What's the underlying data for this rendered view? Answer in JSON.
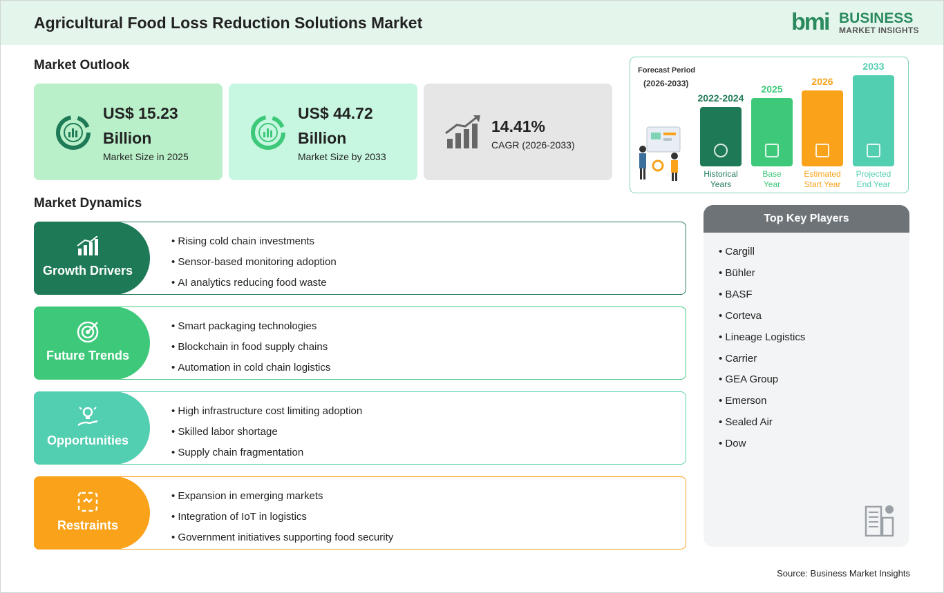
{
  "header": {
    "title": "Agricultural Food Loss Reduction Solutions Market",
    "logo_mark": "bmi",
    "logo_name": "BUSINESS",
    "logo_sub": "MARKET INSIGHTS"
  },
  "outlook": {
    "heading": "Market Outlook",
    "cards": [
      {
        "value": "US$ 15.23",
        "unit": "Billion",
        "label": "Market Size in 2025"
      },
      {
        "value": "US$ 44.72",
        "unit": "Billion",
        "label": "Market Size by 2033"
      },
      {
        "value": "14.41%",
        "label": "CAGR (2026-2033)"
      }
    ]
  },
  "forecast": {
    "title": "Forecast Period",
    "range": "(2026-2033)",
    "bars": [
      {
        "year": "2022-2024",
        "label": [
          "Historical",
          "Years"
        ]
      },
      {
        "year": "2025",
        "label": [
          "Base",
          "Year"
        ]
      },
      {
        "year": "2026",
        "label": [
          "Estimated",
          "Start Year"
        ]
      },
      {
        "year": "2033",
        "label": [
          "Projected",
          "End Year"
        ]
      }
    ]
  },
  "dynamics": {
    "heading": "Market Dynamics",
    "sections": [
      {
        "title": "Growth Drivers",
        "items": [
          "Rising cold chain investments",
          "Sensor-based monitoring adoption",
          "AI analytics reducing food waste"
        ]
      },
      {
        "title": "Future Trends",
        "items": [
          "Smart packaging technologies",
          "Blockchain in food supply chains",
          "Automation in cold chain logistics"
        ]
      },
      {
        "title": "Opportunities",
        "items": [
          "High infrastructure cost limiting adoption",
          "Skilled labor shortage",
          "Supply chain fragmentation"
        ]
      },
      {
        "title": "Restraints",
        "items": [
          "Expansion in emerging markets",
          "Integration of IoT in logistics",
          "Government initiatives supporting food security"
        ]
      }
    ]
  },
  "players": {
    "heading": "Top Key Players",
    "items": [
      "Cargill",
      "Bühler",
      "BASF",
      "Corteva",
      "Lineage Logistics",
      "Carrier",
      "GEA Group",
      "Emerson",
      "Sealed Air",
      "Dow"
    ]
  },
  "source": "Source: Business Market Insights"
}
